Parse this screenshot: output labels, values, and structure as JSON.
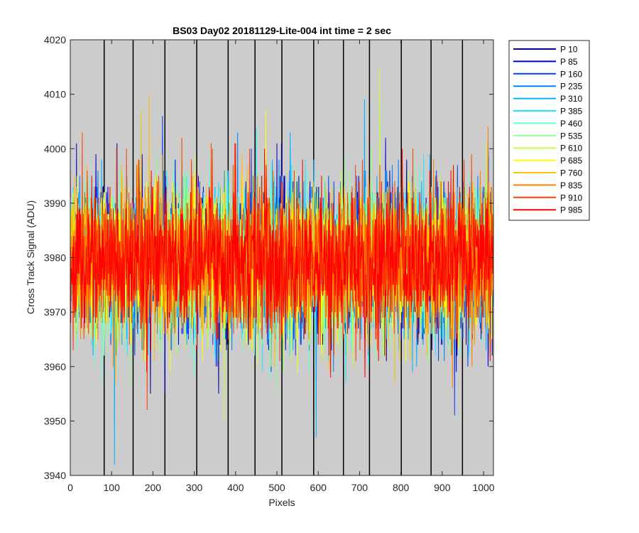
{
  "chart_data": {
    "type": "line",
    "title": "BS03 Day02 20181129-Lite-004 int time = 2 sec",
    "xlabel": "Pixels",
    "ylabel": "Cross Track Signal (ADU)",
    "xlim": [
      0,
      1024
    ],
    "ylim": [
      3940,
      4020
    ],
    "xticks": [
      0,
      100,
      200,
      300,
      400,
      500,
      600,
      700,
      800,
      900,
      1000
    ],
    "yticks": [
      3940,
      3950,
      3960,
      3970,
      3980,
      3990,
      4000,
      4010,
      4020
    ],
    "background_color": "#cccccc",
    "grid": false,
    "vertical_dividers_x": [
      82,
      152,
      229,
      306,
      382,
      447,
      512,
      589,
      661,
      724,
      801,
      873,
      949
    ],
    "legend_position": "outside-right",
    "noise_model": {
      "mean": 3979.5,
      "std": 6.5,
      "n_points": 1024
    },
    "series": [
      {
        "name": "P 10",
        "color": "#00008f",
        "peaks": {
          "113": 4001,
          "380": 3964,
          "760": 3962
        }
      },
      {
        "name": "P 85",
        "color": "#0000d0",
        "peaks": {
          "15": 4001,
          "500": 4001,
          "511": 4001,
          "1011": 3960
        }
      },
      {
        "name": "P 160",
        "color": "#0040ff",
        "peaks": {
          "223": 4006,
          "930": 3951,
          "1011": 4001
        }
      },
      {
        "name": "P 235",
        "color": "#0080ff",
        "peaks": {
          "405": 4003,
          "637": 3959
        }
      },
      {
        "name": "P 310",
        "color": "#00b0ff",
        "peaks": {
          "107": 3942,
          "595": 3947,
          "712": 4009
        }
      },
      {
        "name": "P 385",
        "color": "#20e8ff",
        "peaks": {
          "450": 4004,
          "350": 3962
        }
      },
      {
        "name": "P 460",
        "color": "#60ffd0",
        "peaks": {
          "600": 3966
        }
      },
      {
        "name": "P 535",
        "color": "#90ff90",
        "peaks": {
          "500": 3955
        }
      },
      {
        "name": "P 610",
        "color": "#c0ff40",
        "peaks": {
          "373": 3950,
          "749": 4015
        }
      },
      {
        "name": "P 685",
        "color": "#ffff00",
        "peaks": {
          "473": 4007,
          "440": 3963
        }
      },
      {
        "name": "P 760",
        "color": "#ffc000",
        "peaks": {
          "191": 4010,
          "171": 4007
        }
      },
      {
        "name": "P 835",
        "color": "#ff8000",
        "peaks": {
          "925": 3956,
          "1011": 4004
        }
      },
      {
        "name": "P 910",
        "color": "#ff4000",
        "peaks": {
          "186": 3952,
          "270": 4002
        }
      },
      {
        "name": "P 985",
        "color": "#ff0000",
        "peaks": {}
      }
    ]
  }
}
